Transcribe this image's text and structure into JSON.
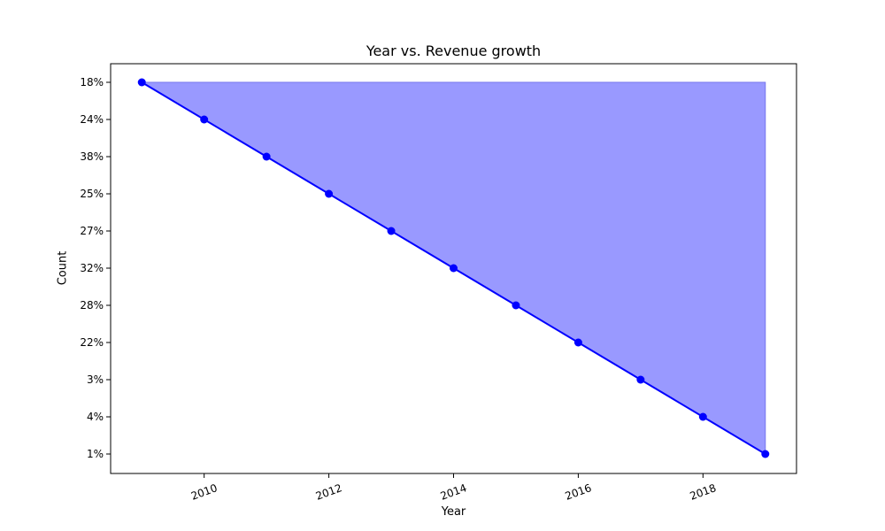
{
  "chart_data": {
    "type": "area",
    "title": "Year vs. Revenue growth",
    "xlabel": "Year",
    "ylabel": "Count",
    "x": [
      2009,
      2010,
      2011,
      2012,
      2013,
      2014,
      2015,
      2016,
      2017,
      2018,
      2019
    ],
    "y_categories": [
      "18%",
      "24%",
      "38%",
      "25%",
      "27%",
      "32%",
      "28%",
      "22%",
      "3%",
      "4%",
      "1%"
    ],
    "x_ticks": [
      2010,
      2012,
      2014,
      2016,
      2018
    ],
    "xlim": [
      2008.5,
      2019.5
    ],
    "grid": false,
    "legend": "none",
    "line_color": "#0000ff",
    "fill_color": "#9999ff"
  }
}
